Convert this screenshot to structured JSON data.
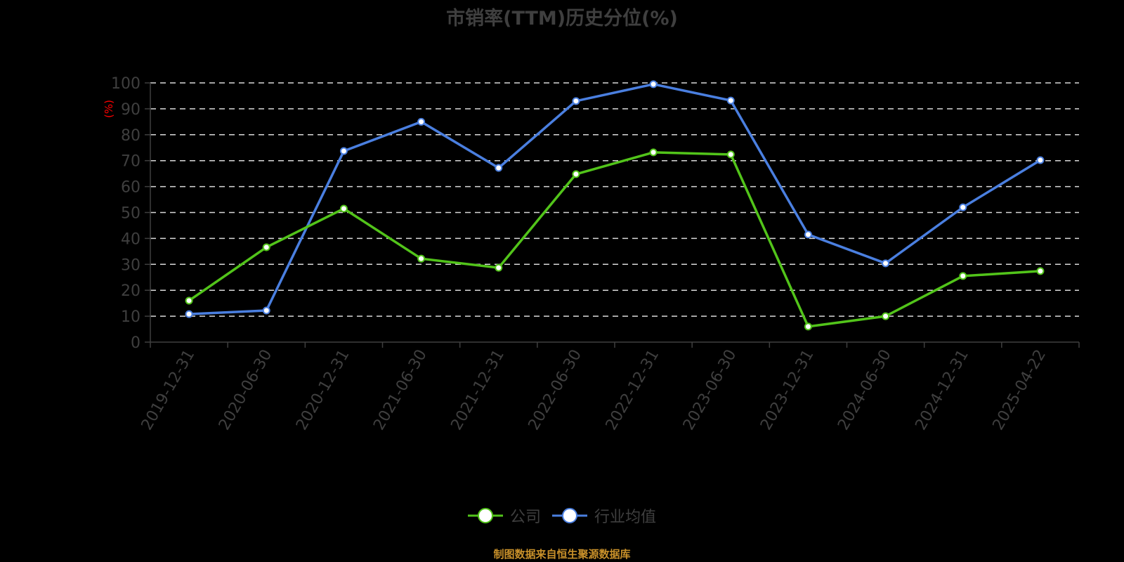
{
  "chart_data": {
    "type": "line",
    "title": "市销率(TTM)历史分位(%)",
    "xlabel": "",
    "ylabel": "(%)",
    "ylim": [
      0,
      100
    ],
    "yticks": [
      0,
      10,
      20,
      30,
      40,
      50,
      60,
      70,
      80,
      90,
      100
    ],
    "grid": true,
    "legend_position": "bottom",
    "categories": [
      "2019-12-31",
      "2020-06-30",
      "2020-12-31",
      "2021-06-30",
      "2021-12-31",
      "2022-06-30",
      "2022-12-31",
      "2023-06-30",
      "2023-12-31",
      "2024-06-30",
      "2024-12-31",
      "2025-04-22"
    ],
    "series": [
      {
        "name": "公司",
        "color": "#52c41a",
        "values": [
          16.0,
          36.6,
          51.5,
          32.2,
          28.7,
          64.8,
          73.2,
          72.4,
          6.0,
          10.0,
          25.5,
          27.4
        ]
      },
      {
        "name": "行业均值",
        "color": "#4a7fe0",
        "values": [
          10.8,
          12.2,
          73.7,
          85.0,
          67.2,
          93.0,
          99.5,
          93.2,
          41.5,
          30.4,
          52.0,
          70.2
        ]
      }
    ],
    "source": "制图数据来自恒生聚源数据库"
  },
  "ui": {
    "title": "市销率(TTM)历史分位(%)",
    "y_axis_unit": "(%)",
    "legend": [
      {
        "label": "公司",
        "color": "#52c41a"
      },
      {
        "label": "行业均值",
        "color": "#4a7fe0"
      }
    ],
    "source": "制图数据来自恒生聚源数据库"
  }
}
